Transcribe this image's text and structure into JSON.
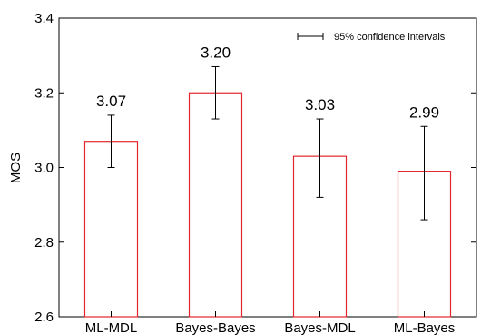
{
  "chart_data": {
    "type": "bar",
    "categories": [
      "ML-MDL",
      "Bayes-Bayes",
      "Bayes-MDL",
      "ML-Bayes"
    ],
    "values": [
      3.07,
      3.2,
      3.03,
      2.99
    ],
    "value_labels": [
      "3.07",
      "3.20",
      "3.03",
      "2.99"
    ],
    "error_low": [
      3.0,
      3.13,
      2.92,
      2.86
    ],
    "error_high": [
      3.14,
      3.27,
      3.13,
      3.11
    ],
    "ylabel": "MOS",
    "xlabel": "",
    "ylim": [
      2.6,
      3.4
    ],
    "yticks": [
      2.6,
      2.8,
      3.0,
      3.2,
      3.4
    ],
    "ytick_labels": [
      "2.6",
      "2.8",
      "3.0",
      "3.2",
      "3.4"
    ],
    "legend": {
      "label": "95% confidence intervals",
      "placement": "top-right"
    },
    "grid": false,
    "bar_color": "#e3262c",
    "bar_fill": "#ffffff",
    "error_color": "#000000"
  }
}
